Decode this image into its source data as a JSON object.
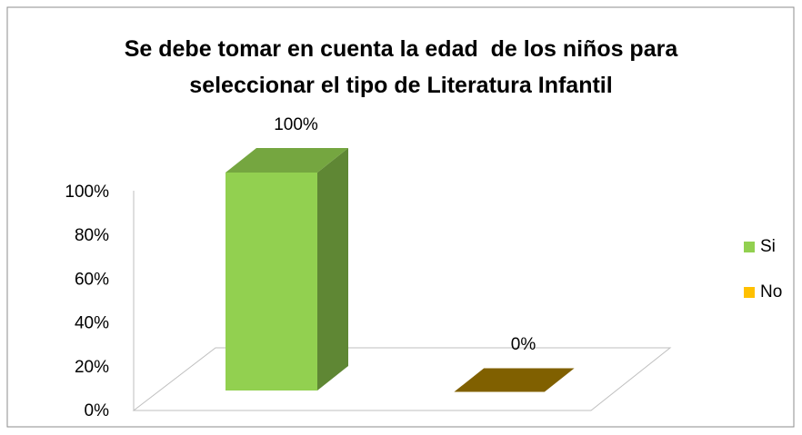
{
  "chart_data": {
    "type": "bar3d",
    "title": "Se debe tomar en cuenta la edad  de los niños para seleccionar el tipo de Literatura Infantil",
    "categories": [
      "Si",
      "No"
    ],
    "values": [
      100,
      0
    ],
    "value_labels": [
      "100%",
      "0%"
    ],
    "colors": [
      "#92d050",
      "#ffc000"
    ],
    "ylim": [
      0,
      100
    ],
    "yticks": [
      {
        "value": 0,
        "label": "0%"
      },
      {
        "value": 20,
        "label": "20%"
      },
      {
        "value": 40,
        "label": "40%"
      },
      {
        "value": 60,
        "label": "60%"
      },
      {
        "value": 80,
        "label": "80%"
      },
      {
        "value": 100,
        "label": "100%"
      }
    ],
    "legend": "right"
  }
}
